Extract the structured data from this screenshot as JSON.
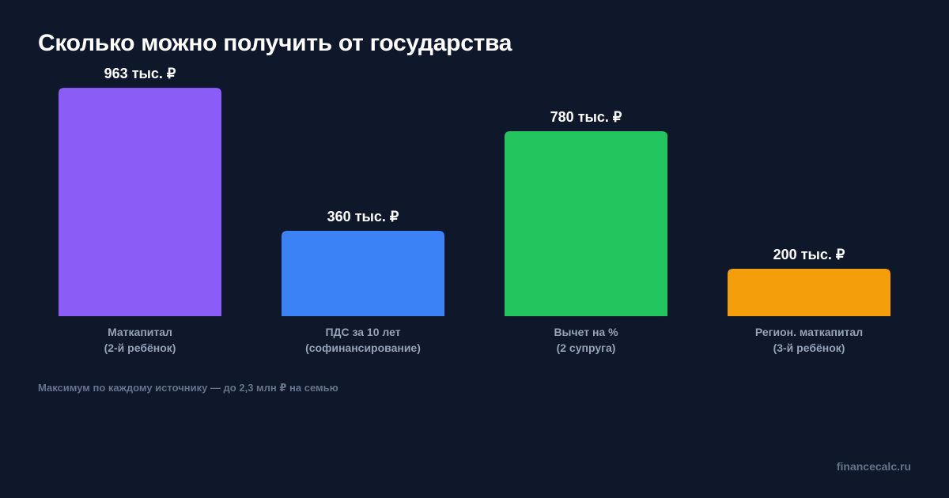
{
  "header": {
    "title": "Сколько можно получить от государства"
  },
  "chart_data": {
    "type": "bar",
    "title": "Сколько можно получить от государства",
    "categories": [
      [
        "Маткапитал",
        "(2-й ребёнок)"
      ],
      [
        "ПДС за 10 лет",
        "(софинансирование)"
      ],
      [
        "Вычет на %",
        "(2 супруга)"
      ],
      [
        "Регион. маткапитал",
        "(3-й ребёнок)"
      ]
    ],
    "values": [
      963,
      360,
      780,
      200
    ],
    "value_labels": [
      "963 тыс. ₽",
      "360 тыс. ₽",
      "780 тыс. ₽",
      "200 тыс. ₽"
    ],
    "unit": "тыс. ₽",
    "colors": [
      "#8b5cf6",
      "#3b82f6",
      "#22c55e",
      "#f59e0b"
    ],
    "ylim": [
      0,
      1000
    ],
    "grid": false,
    "legend": "none"
  },
  "footer": {
    "note": "Максимум по каждому источнику — до 2,3 млн ₽ на семью",
    "brand": "financecalc.ru"
  }
}
